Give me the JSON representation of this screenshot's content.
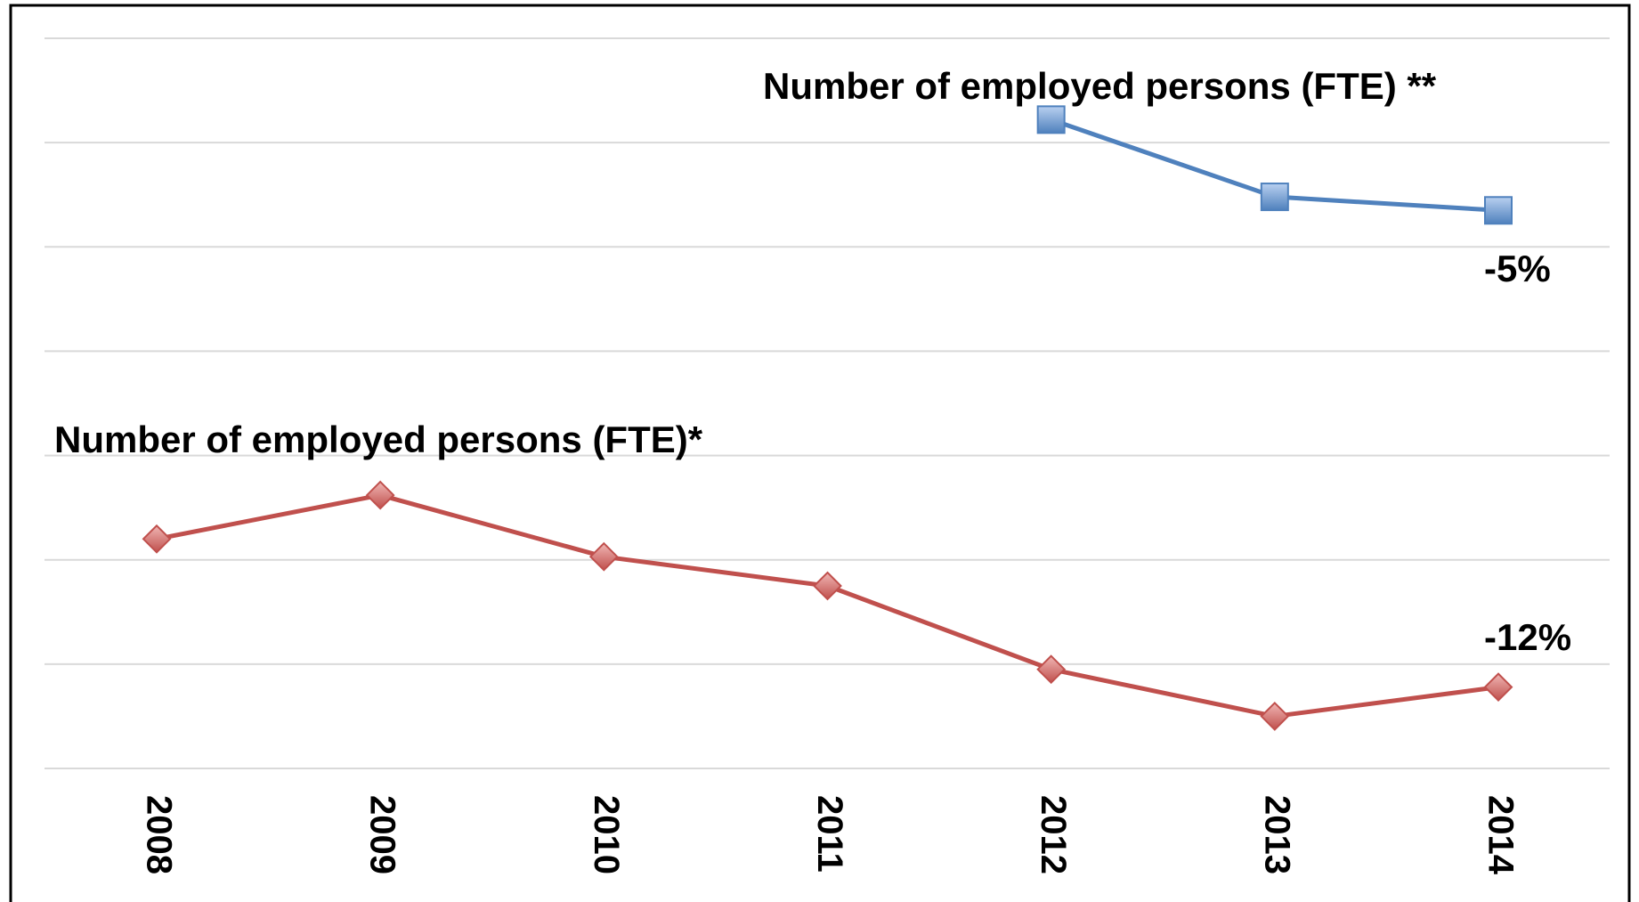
{
  "chart_data": {
    "type": "line",
    "categories": [
      "2008",
      "2009",
      "2010",
      "2011",
      "2012",
      "2013",
      "2014"
    ],
    "series": [
      {
        "name": "Number of employed persons (FTE) **",
        "color": "#4f81bd",
        "marker": "square",
        "values": [
          null,
          null,
          null,
          null,
          6.22,
          5.48,
          5.35
        ],
        "end_label": "-5%"
      },
      {
        "name": "Number of employed persons (FTE)*",
        "color": "#c0504d",
        "marker": "diamond",
        "values": [
          2.2,
          2.62,
          2.03,
          1.75,
          0.95,
          0.5,
          0.78
        ],
        "end_label": "-12%"
      }
    ],
    "ylim": [
      0,
      7
    ],
    "yticks": [
      0,
      1,
      2,
      3,
      4,
      5,
      6,
      7
    ],
    "grid": true,
    "ytick_labels": false
  }
}
